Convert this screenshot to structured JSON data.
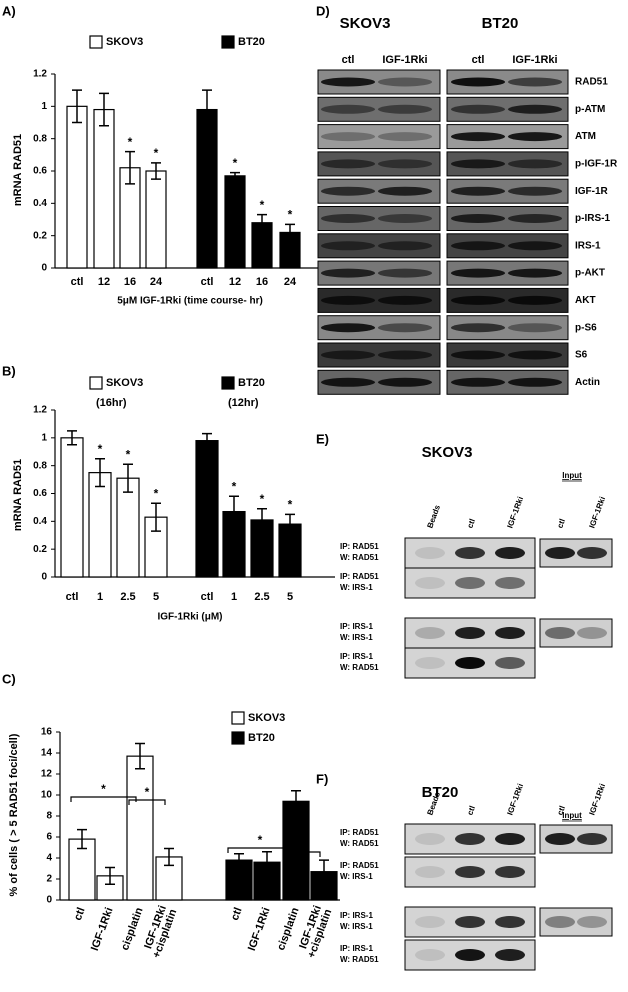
{
  "chart_data": [
    {
      "type": "bar",
      "panel_label": "A)",
      "y_label": "mRNA RAD51",
      "x_label": "5μM IGF-1Rki (time course- hr)",
      "categories": [
        "ctl",
        "12",
        "16",
        "24",
        "ctl",
        "12",
        "16",
        "24"
      ],
      "series": [
        {
          "name": "SKOV3",
          "color": "#ffffff",
          "values": [
            1,
            0.98,
            0.62,
            0.6,
            null,
            null,
            null,
            null
          ],
          "errors": [
            0.1,
            0.1,
            0.1,
            0.05,
            null,
            null,
            null,
            null
          ],
          "annotations": [
            null,
            null,
            "*",
            "*",
            null,
            null,
            null,
            null
          ]
        },
        {
          "name": "BT20",
          "color": "#000000",
          "values": [
            null,
            null,
            null,
            null,
            0.98,
            0.57,
            0.28,
            0.22
          ],
          "errors": [
            null,
            null,
            null,
            null,
            0.12,
            0.02,
            0.05,
            0.05
          ],
          "annotations": [
            null,
            null,
            null,
            null,
            null,
            "*",
            "*",
            "*"
          ]
        }
      ],
      "ylim": [
        0,
        1.2
      ],
      "yticks": [
        0,
        0.2,
        0.4,
        0.6,
        0.8,
        1,
        1.2
      ]
    },
    {
      "type": "bar",
      "panel_label": "B)",
      "y_label": "mRNA RAD51",
      "x_label": "IGF-1Rki (μM)",
      "categories": [
        "ctl",
        "1",
        "2.5",
        "5",
        "ctl",
        "1",
        "2.5",
        "5"
      ],
      "series": [
        {
          "name": "SKOV3",
          "note": "(16hr)",
          "color": "#ffffff",
          "values": [
            1,
            0.75,
            0.71,
            0.43,
            null,
            null,
            null,
            null
          ],
          "errors": [
            0.05,
            0.1,
            0.1,
            0.1,
            null,
            null,
            null,
            null
          ],
          "annotations": [
            null,
            "*",
            "*",
            "*",
            null,
            null,
            null,
            null
          ]
        },
        {
          "name": "BT20",
          "note": "(12hr)",
          "color": "#000000",
          "values": [
            null,
            null,
            null,
            null,
            0.98,
            0.47,
            0.41,
            0.38
          ],
          "errors": [
            null,
            null,
            null,
            null,
            0.05,
            0.11,
            0.08,
            0.07
          ],
          "annotations": [
            null,
            null,
            null,
            null,
            null,
            "*",
            "*",
            "*"
          ]
        }
      ],
      "ylim": [
        0,
        1.2
      ],
      "yticks": [
        0,
        0.2,
        0.4,
        0.6,
        0.8,
        1,
        1.2
      ]
    },
    {
      "type": "bar",
      "panel_label": "C)",
      "y_label": "% of cells ( > 5 RAD51 foci/cell)",
      "categories": [
        "ctl",
        "IGF-1Rki",
        "cisplatin",
        "IGF-1Rki +cisplatin",
        "ctl",
        "IGF-1Rki",
        "cisplatin",
        "IGF-1Rki +cisplatin"
      ],
      "series": [
        {
          "name": "SKOV3",
          "color": "#ffffff",
          "values": [
            5.8,
            2.3,
            13.7,
            4.1,
            null,
            null,
            null,
            null
          ],
          "errors": [
            0.9,
            0.8,
            1.2,
            0.8,
            null,
            null,
            null,
            null
          ]
        },
        {
          "name": "BT20",
          "color": "#000000",
          "values": [
            null,
            null,
            null,
            null,
            3.8,
            3.6,
            9.4,
            2.7
          ],
          "errors": [
            null,
            null,
            null,
            null,
            0.6,
            1,
            1,
            1.1
          ]
        }
      ],
      "brackets": [
        {
          "from": 0,
          "to": 2,
          "label": "*"
        },
        {
          "from": 2,
          "to": 3,
          "label": "*"
        },
        {
          "from": 4,
          "to": 6,
          "label": "*"
        },
        {
          "from": 6,
          "to": 7,
          "label": "*"
        }
      ],
      "ylim": [
        0,
        16
      ],
      "yticks": [
        0,
        2,
        4,
        6,
        8,
        10,
        12,
        14,
        16
      ]
    }
  ],
  "panel_d": {
    "label": "D)",
    "cell_lines": [
      "SKOV3",
      "BT20"
    ],
    "lanes": [
      "ctl",
      "IGF-1Rki",
      "ctl",
      "IGF-1Rki"
    ],
    "proteins": [
      "RAD51",
      "p-ATM",
      "ATM",
      "p-IGF-1R",
      "IGF-1R",
      "p-IRS-1",
      "IRS-1",
      "p-AKT",
      "AKT",
      "p-S6",
      "S6",
      "Actin"
    ]
  },
  "panel_e": {
    "label": "E)",
    "title": "SKOV3",
    "input_label": "Input",
    "lanes": [
      "Beads",
      "ctl",
      "IGF-1Rki",
      "ctl",
      "IGF-1Rki"
    ],
    "rows": [
      [
        "IP: RAD51",
        "W: RAD51"
      ],
      [
        "IP: RAD51",
        "W: IRS-1"
      ],
      [
        "IP: IRS-1",
        "W: IRS-1"
      ],
      [
        "IP: IRS-1",
        "W: RAD51"
      ]
    ]
  },
  "panel_f": {
    "label": "F)",
    "title": "BT20",
    "input_label": "Input",
    "lanes": [
      "Beads",
      "ctl",
      "IGF-1Rki",
      "ctl",
      "IGF-1Rki"
    ],
    "rows": [
      [
        "IP: RAD51",
        "W: RAD51"
      ],
      [
        "IP: RAD51",
        "W: IRS-1"
      ],
      [
        "IP: IRS-1",
        "W: IRS-1"
      ],
      [
        "IP: IRS-1",
        "W: RAD51"
      ]
    ]
  }
}
